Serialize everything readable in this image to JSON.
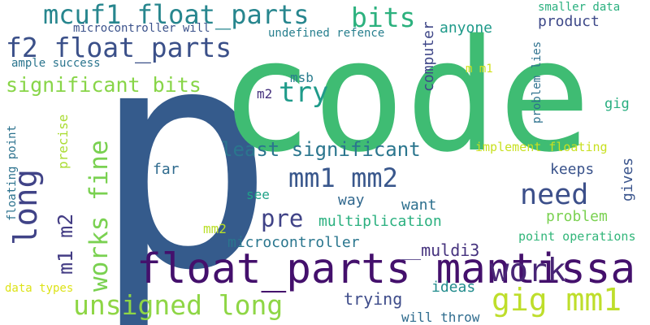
{
  "words": [
    {
      "text": "p",
      "color": "#355b8c"
    },
    {
      "text": "code",
      "color": "#3fbc73"
    },
    {
      "text": "float_parts mantissa",
      "color": "#44106c"
    },
    {
      "text": "mcuf1 float_parts",
      "color": "#27868e"
    },
    {
      "text": "f2 float_parts",
      "color": "#3b5089"
    },
    {
      "text": "bits",
      "color": "#2cb17e"
    },
    {
      "text": "try",
      "color": "#1f9b8a"
    },
    {
      "text": "significant bits",
      "color": "#88d548"
    },
    {
      "text": "mm1 mm2",
      "color": "#39578c"
    },
    {
      "text": "least significant",
      "color": "#2b768e"
    },
    {
      "text": "need",
      "color": "#3c4f8a"
    },
    {
      "text": "work",
      "color": "#482576"
    },
    {
      "text": "long",
      "color": "#404387"
    },
    {
      "text": "works fine",
      "color": "#7ad151"
    },
    {
      "text": "m1 m2",
      "color": "#433c84"
    },
    {
      "text": "pre",
      "color": "#404387"
    },
    {
      "text": "unsigned long",
      "color": "#8ed645"
    },
    {
      "text": "gig mm1",
      "color": "#bede2b"
    },
    {
      "text": "multiplication",
      "color": "#2ab07f"
    },
    {
      "text": "microcontroller",
      "color": "#2a768e"
    },
    {
      "text": "__muldi3",
      "color": "#46337e"
    },
    {
      "text": "keeps",
      "color": "#3a538b"
    },
    {
      "text": "far",
      "color": "#2f6b8e"
    },
    {
      "text": "see",
      "color": "#1fa187"
    },
    {
      "text": "way",
      "color": "#31688e"
    },
    {
      "text": "want",
      "color": "#2d708e"
    },
    {
      "text": "problem",
      "color": "#7ad151"
    },
    {
      "text": "ideas",
      "color": "#228c8d"
    },
    {
      "text": "trying",
      "color": "#3e4c8a"
    },
    {
      "text": "will throw",
      "color": "#2f6c8e"
    },
    {
      "text": "point operations",
      "color": "#32b67a"
    },
    {
      "text": "gives",
      "color": "#3a548c"
    },
    {
      "text": "gig",
      "color": "#28ae80"
    },
    {
      "text": "implement floating",
      "color": "#c8e020"
    },
    {
      "text": "product",
      "color": "#3e4989"
    },
    {
      "text": "anyone",
      "color": "#1f9a8a"
    },
    {
      "text": "computer",
      "color": "#3f4788"
    },
    {
      "text": "msb",
      "color": "#287c8e"
    },
    {
      "text": "m2",
      "color": "#46327e"
    },
    {
      "text": "undefined refence",
      "color": "#277f8e"
    },
    {
      "text": "microcontroller will",
      "color": "#3b528b"
    },
    {
      "text": "ample success",
      "color": "#2b758e"
    },
    {
      "text": "m m1",
      "color": "#d2e21b"
    },
    {
      "text": "smaller data",
      "color": "#2ab07f"
    },
    {
      "text": "problem lies",
      "color": "#2d718e"
    },
    {
      "text": "precise",
      "color": "#aadc32"
    },
    {
      "text": "floating point",
      "color": "#2c728e"
    },
    {
      "text": "mm2",
      "color": "#bade28"
    },
    {
      "text": "data types",
      "color": "#dde318"
    }
  ]
}
